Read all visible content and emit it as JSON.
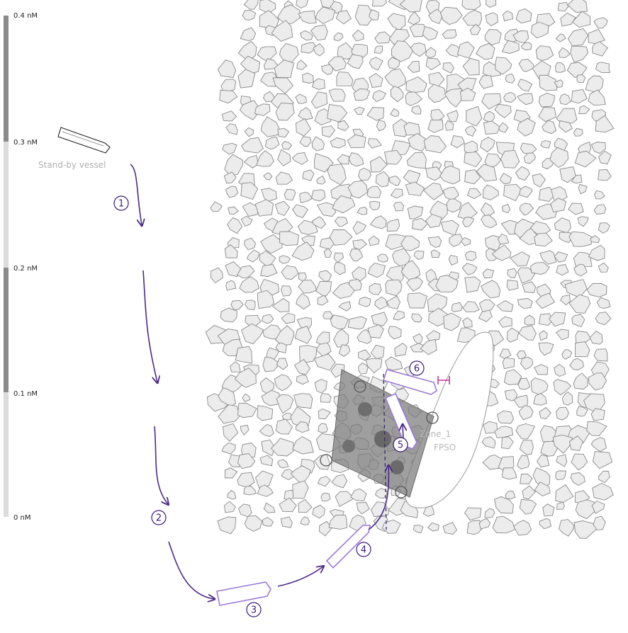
{
  "scale": {
    "ticks": [
      {
        "label": "0.4 nM",
        "value": 0.4
      },
      {
        "label": "0.3 nM",
        "value": 0.3
      },
      {
        "label": "0.2 nM",
        "value": 0.2
      },
      {
        "label": "0.1 nM",
        "value": 0.1
      },
      {
        "label": "0 nM",
        "value": 0
      }
    ]
  },
  "labels": {
    "standby_vessel": "Stand-by vessel",
    "zone": "Zone_1",
    "fpso": "FPSO"
  },
  "steps": [
    "1",
    "2",
    "3",
    "4",
    "5",
    "6"
  ],
  "colors": {
    "route": "#4b2a8a",
    "vessel_outline": "#9a7ad8",
    "ice_fill": "#ececec",
    "ice_stroke": "#8a8a8a",
    "zone_fill": "#7a7a7a",
    "scale_dark": "#8a8a8a",
    "scale_light": "#dcdcdc",
    "marker": "#c03090"
  }
}
